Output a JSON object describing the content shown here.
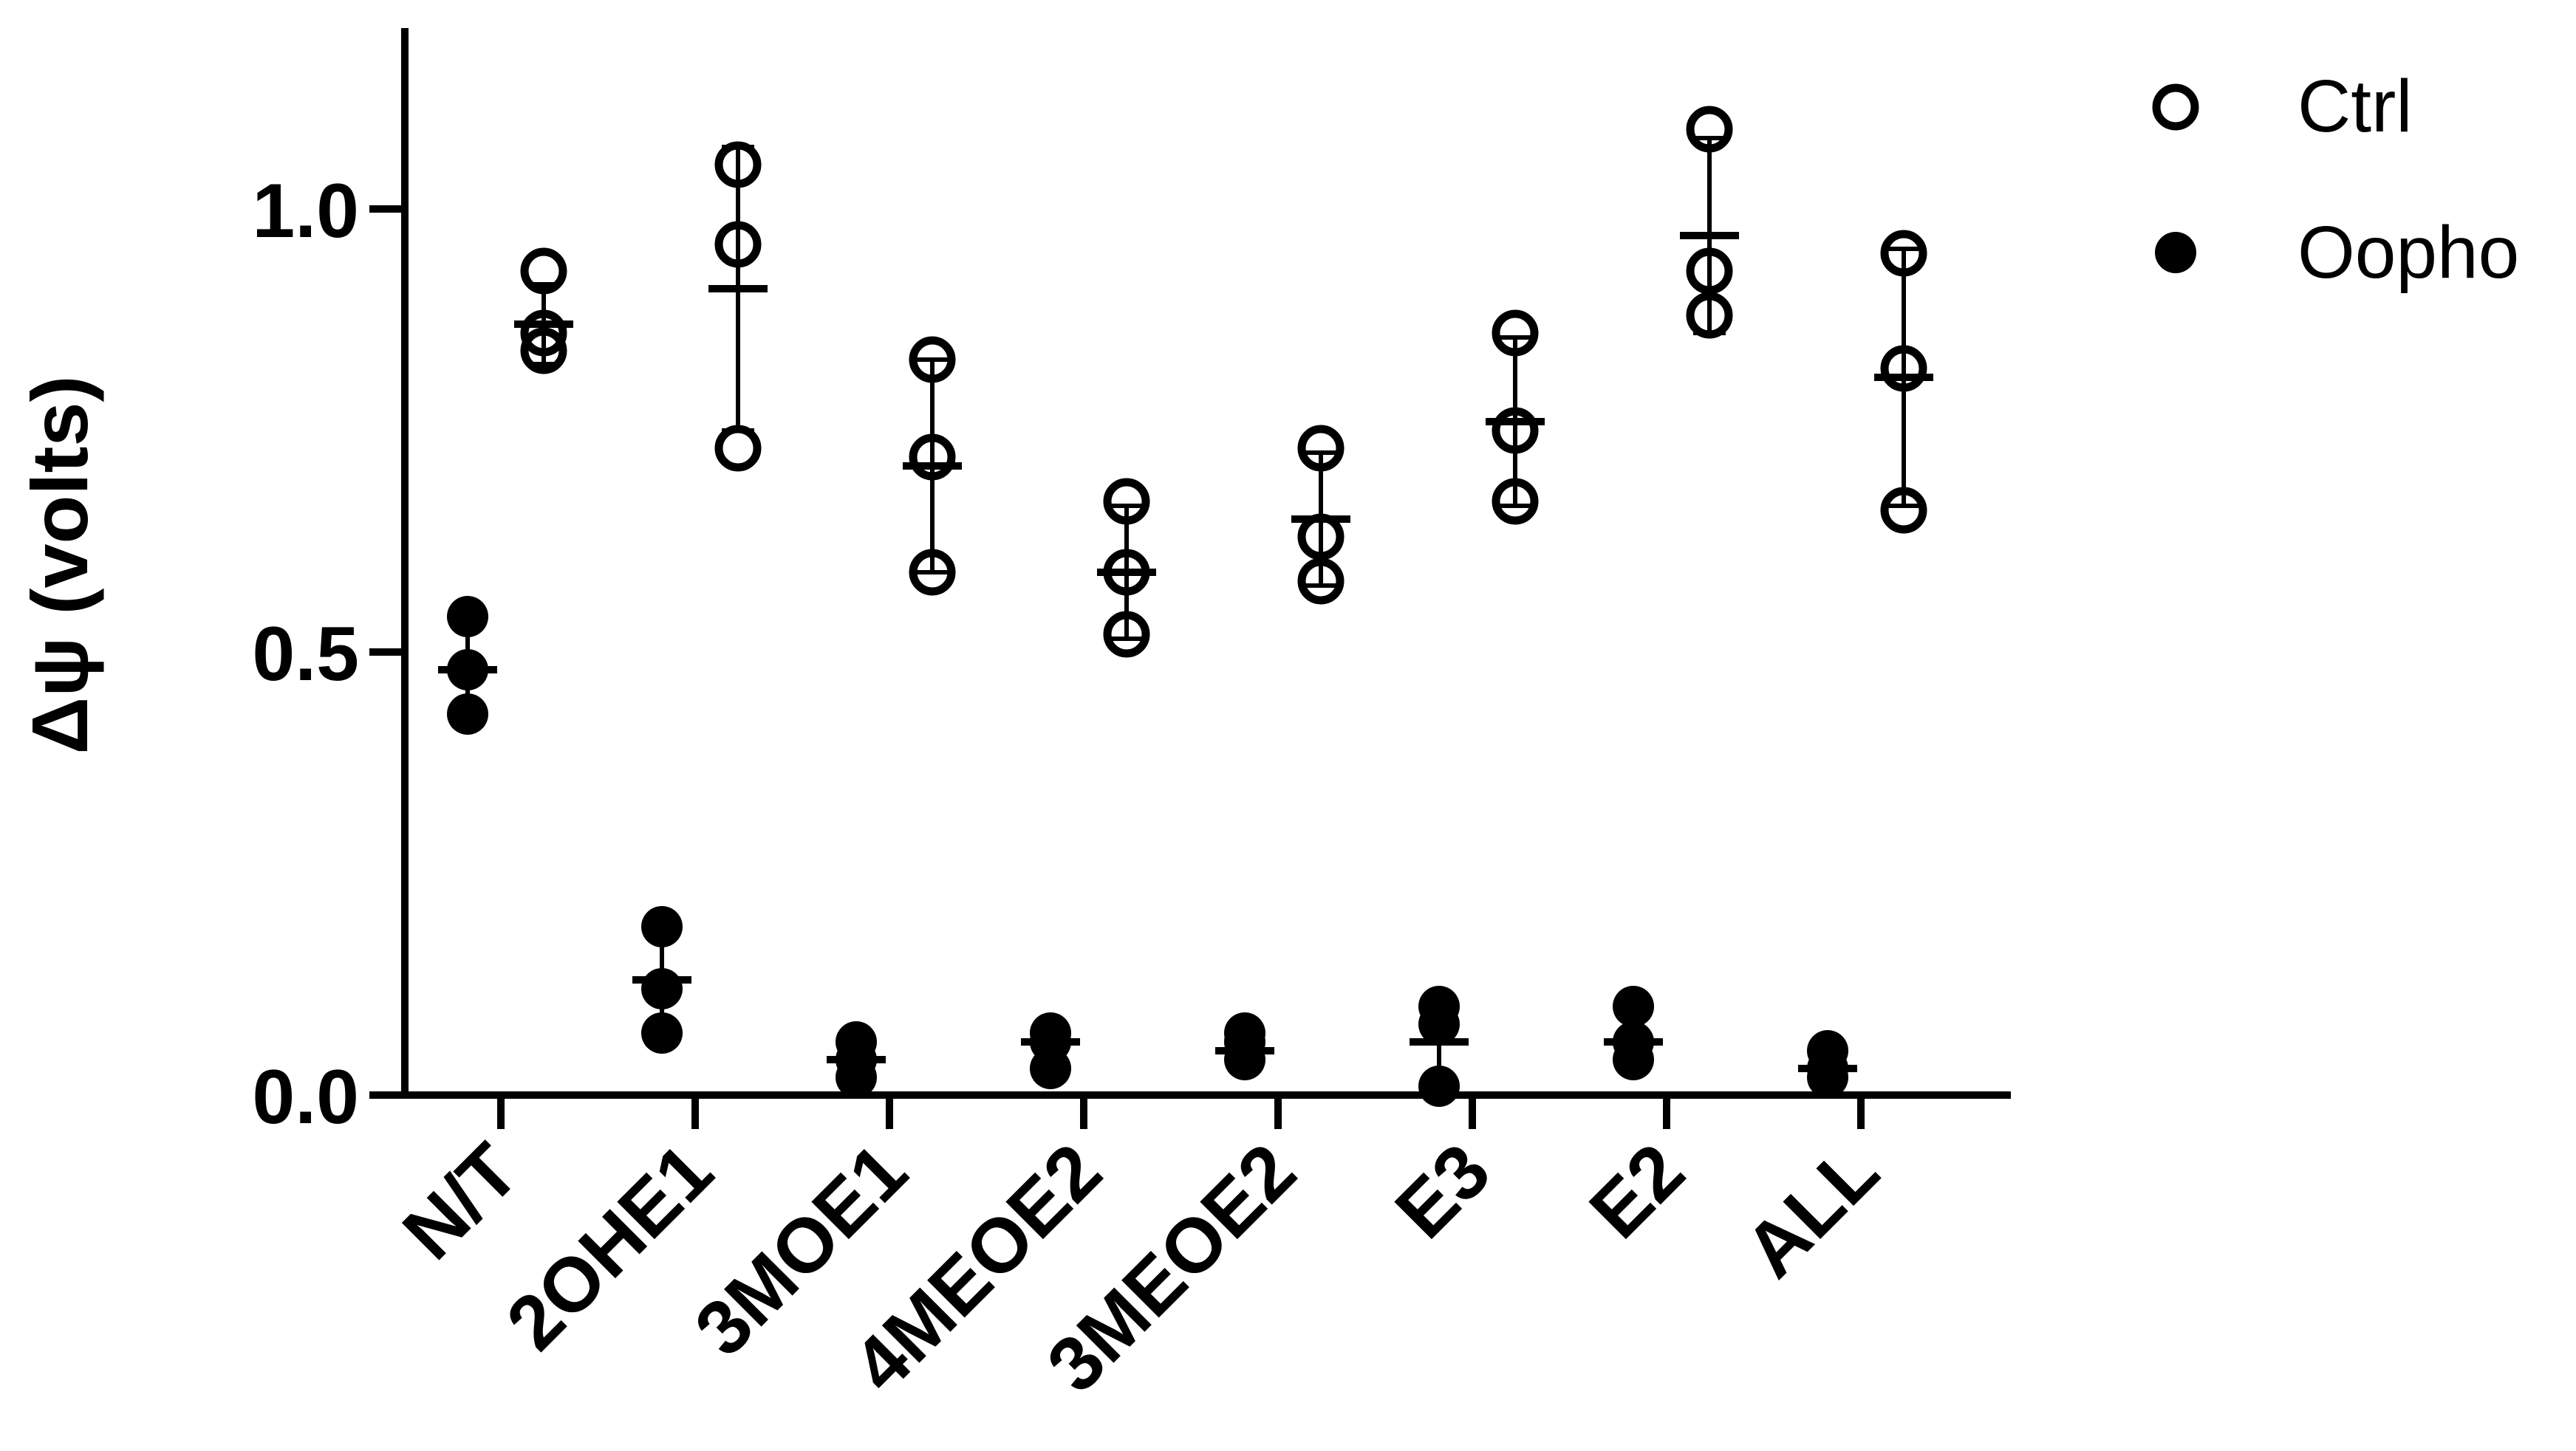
{
  "chart_data": {
    "type": "scatter",
    "ylabel": "Δψ   (volts)",
    "ylim": [
      0,
      1.2
    ],
    "yticks": [
      {
        "value": 0.0,
        "label": "0.0"
      },
      {
        "value": 0.5,
        "label": "0.5"
      },
      {
        "value": 1.0,
        "label": "1.0"
      }
    ],
    "categories": [
      "N/T",
      "2OHE1",
      "3MOE1",
      "4MEOE2",
      "3MEOE2",
      "E3",
      "E2",
      "ALL"
    ],
    "legend": {
      "position": "top-right"
    },
    "colors": {
      "axis": "#000000",
      "marker": "#000000",
      "background": "#ffffff"
    },
    "series": [
      {
        "name": "Oopho",
        "marker": "filled-circle",
        "points": [
          [
            0.54,
            0.48,
            0.43
          ],
          [
            0.19,
            0.12,
            0.07
          ],
          [
            0.06,
            0.04,
            0.02
          ],
          [
            0.07,
            0.06,
            0.03
          ],
          [
            0.07,
            0.06,
            0.04
          ],
          [
            0.1,
            0.08,
            0.01
          ],
          [
            0.1,
            0.06,
            0.04
          ],
          [
            0.05,
            0.03,
            0.02
          ]
        ],
        "mean": [
          0.48,
          0.13,
          0.04,
          0.06,
          0.05,
          0.06,
          0.06,
          0.03
        ],
        "sd": [
          0.05,
          0.05,
          0.02,
          0.02,
          0.015,
          0.045,
          0.03,
          0.015
        ]
      },
      {
        "name": "Ctrl",
        "marker": "open-circle",
        "points": [
          [
            0.93,
            0.86,
            0.84
          ],
          [
            1.05,
            0.96,
            0.73
          ],
          [
            0.83,
            0.72,
            0.59
          ],
          [
            0.67,
            0.59,
            0.52
          ],
          [
            0.73,
            0.63,
            0.58
          ],
          [
            0.86,
            0.75,
            0.67
          ],
          [
            1.09,
            0.93,
            0.88
          ],
          [
            0.95,
            0.82,
            0.66
          ]
        ],
        "mean": [
          0.87,
          0.91,
          0.71,
          0.59,
          0.65,
          0.76,
          0.97,
          0.81
        ],
        "sd": [
          0.045,
          0.16,
          0.12,
          0.075,
          0.075,
          0.095,
          0.11,
          0.145
        ]
      }
    ]
  }
}
